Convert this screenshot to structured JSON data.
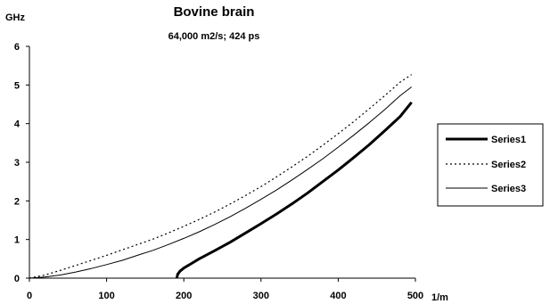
{
  "chart_data": {
    "type": "line",
    "title": "Bovine brain",
    "subtitle": "64,000 m2/s; 424 ps",
    "ylabel": "GHz",
    "xlabel": "1/m",
    "xlim": [
      0,
      500
    ],
    "ylim": [
      0,
      6
    ],
    "x_ticks": [
      0,
      100,
      200,
      300,
      400,
      500
    ],
    "y_ticks": [
      0,
      1,
      2,
      3,
      4,
      5,
      6
    ],
    "grid": false,
    "legend_position": "right",
    "series": [
      {
        "name": "Series1",
        "style": "thick-solid",
        "color": "#000000",
        "points": [
          [
            191,
            0.0
          ],
          [
            192,
            0.1
          ],
          [
            195,
            0.18
          ],
          [
            200,
            0.26
          ],
          [
            210,
            0.38
          ],
          [
            220,
            0.5
          ],
          [
            240,
            0.71
          ],
          [
            260,
            0.93
          ],
          [
            280,
            1.17
          ],
          [
            300,
            1.41
          ],
          [
            320,
            1.66
          ],
          [
            340,
            1.92
          ],
          [
            360,
            2.2
          ],
          [
            380,
            2.5
          ],
          [
            400,
            2.8
          ],
          [
            420,
            3.12
          ],
          [
            440,
            3.45
          ],
          [
            460,
            3.81
          ],
          [
            480,
            4.18
          ],
          [
            495,
            4.55
          ]
        ]
      },
      {
        "name": "Series2",
        "style": "dotted",
        "color": "#000000",
        "points": [
          [
            0,
            0.0
          ],
          [
            20,
            0.08
          ],
          [
            40,
            0.2
          ],
          [
            60,
            0.33
          ],
          [
            80,
            0.46
          ],
          [
            100,
            0.59
          ],
          [
            120,
            0.73
          ],
          [
            140,
            0.87
          ],
          [
            160,
            1.01
          ],
          [
            180,
            1.17
          ],
          [
            200,
            1.34
          ],
          [
            220,
            1.52
          ],
          [
            240,
            1.71
          ],
          [
            260,
            1.92
          ],
          [
            280,
            2.14
          ],
          [
            300,
            2.37
          ],
          [
            320,
            2.62
          ],
          [
            340,
            2.88
          ],
          [
            360,
            3.15
          ],
          [
            380,
            3.44
          ],
          [
            400,
            3.74
          ],
          [
            420,
            4.05
          ],
          [
            440,
            4.38
          ],
          [
            460,
            4.72
          ],
          [
            480,
            5.07
          ],
          [
            495,
            5.27
          ]
        ]
      },
      {
        "name": "Series3",
        "style": "thin-solid",
        "color": "#000000",
        "points": [
          [
            0,
            0.0
          ],
          [
            20,
            0.03
          ],
          [
            40,
            0.08
          ],
          [
            60,
            0.16
          ],
          [
            80,
            0.25
          ],
          [
            100,
            0.35
          ],
          [
            120,
            0.46
          ],
          [
            140,
            0.59
          ],
          [
            160,
            0.72
          ],
          [
            180,
            0.87
          ],
          [
            200,
            1.03
          ],
          [
            220,
            1.2
          ],
          [
            240,
            1.39
          ],
          [
            260,
            1.59
          ],
          [
            280,
            1.81
          ],
          [
            300,
            2.04
          ],
          [
            320,
            2.28
          ],
          [
            340,
            2.54
          ],
          [
            360,
            2.81
          ],
          [
            380,
            3.09
          ],
          [
            400,
            3.39
          ],
          [
            420,
            3.7
          ],
          [
            440,
            4.02
          ],
          [
            460,
            4.36
          ],
          [
            480,
            4.72
          ],
          [
            495,
            4.95
          ]
        ]
      }
    ]
  }
}
